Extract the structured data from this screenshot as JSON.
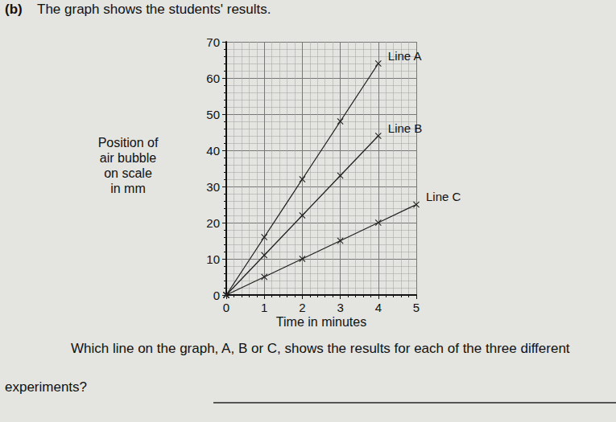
{
  "header": {
    "part": "(b)",
    "text": "The graph shows the students' results."
  },
  "chart_data": {
    "type": "line",
    "x_label": "Time in minutes",
    "y_label": [
      "Position of",
      "air bubble",
      "on scale",
      "in mm"
    ],
    "xlim": [
      0,
      5
    ],
    "xticks": [
      0,
      1,
      2,
      3,
      4,
      5
    ],
    "ylim": [
      0,
      70
    ],
    "yticks": [
      0,
      10,
      20,
      30,
      40,
      50,
      60,
      70
    ],
    "grid": true,
    "marker": "x",
    "line_style": "solid",
    "color": "#222222",
    "series": [
      {
        "name": "Line A",
        "x": [
          0,
          1,
          2,
          3,
          4
        ],
        "values": [
          0,
          16,
          32,
          48,
          64
        ]
      },
      {
        "name": "Line B",
        "x": [
          0,
          1,
          2,
          3,
          4
        ],
        "values": [
          0,
          11,
          22,
          33,
          44
        ]
      },
      {
        "name": "Line C",
        "x": [
          0,
          1,
          2,
          3,
          4,
          5
        ],
        "values": [
          0,
          5,
          10,
          15,
          20,
          25
        ]
      }
    ]
  },
  "question": {
    "lines": [
      "Which line on the graph, A, B or C, shows the results for each of the three different",
      "experiments?"
    ]
  }
}
